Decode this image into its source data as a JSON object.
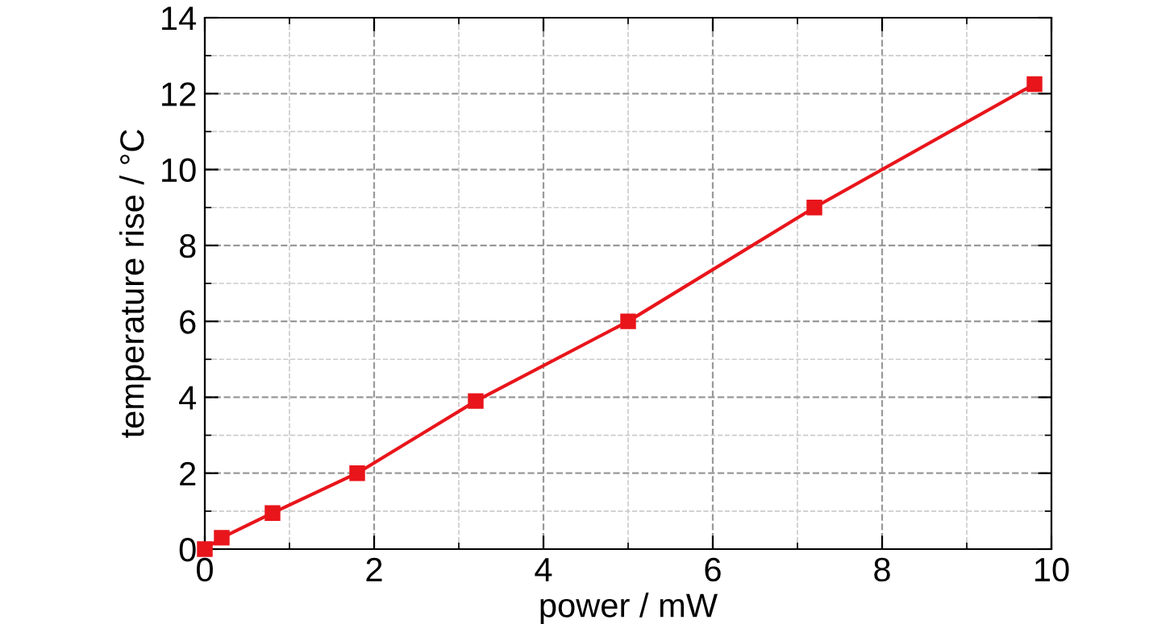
{
  "chart_data": {
    "type": "line",
    "xlabel": "power / mW",
    "ylabel": "temperature rise / °C",
    "series": [
      {
        "color": "#e8151b",
        "x": [
          0,
          0.2,
          0.8,
          1.8,
          3.2,
          5.0,
          7.2,
          9.8
        ],
        "values": [
          0,
          0.3,
          0.95,
          2.0,
          3.9,
          6.0,
          9.0,
          12.25
        ]
      }
    ],
    "xlim": [
      0,
      10
    ],
    "xticks": [
      0,
      2,
      4,
      6,
      8,
      10
    ],
    "ylim": [
      0,
      14
    ],
    "yticks": [
      0,
      2,
      4,
      6,
      8,
      10,
      12,
      14
    ],
    "grid": true,
    "marker": "square",
    "line_style": "solid"
  }
}
